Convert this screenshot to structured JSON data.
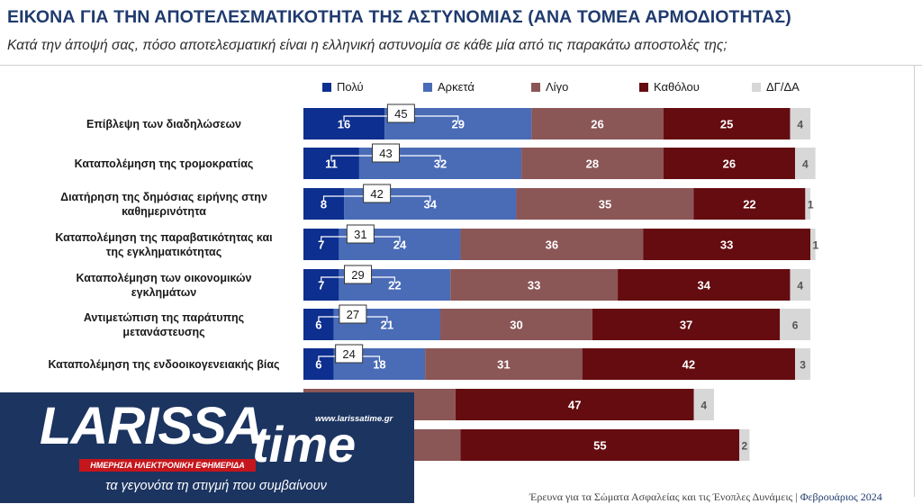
{
  "title": "ΕΙΚΟΝΑ ΓΙΑ ΤΗΝ ΑΠΟΤΕΛΕΣΜΑΤΙΚΟΤΗΤΑ ΤΗΣ ΑΣΤΥΝΟΜΙΑΣ (ΑΝΑ ΤΟΜΕΑ ΑΡΜΟΔΙΟΤΗΤΑΣ)",
  "subtitle": "Κατά την άποψή σας, πόσο αποτελεσματική είναι η ελληνική αστυνομία σε κάθε μία από τις παρακάτω αποστολές της;",
  "footer": {
    "text": "Έρευνα για τα Σώματα Ασφαλείας και τις Ένοπλες Δυνάμεις |",
    "month": "Φεβρουάριος 2024"
  },
  "logo": {
    "brand": "LARISSA",
    "brand2": "time",
    "url": "www.larissatime.gr",
    "ribbon": "ΗΜΕΡΗΣΙΑ ΗΛΕΚΤΡΟΝΙΚΗ ΕΦΗΜΕΡΙΔΑ",
    "slogan": "τα γεγονότα τη στιγμή που συμβαίνουν",
    "colors": {
      "bg": "#1c3460",
      "ribbon": "#c4161c"
    }
  },
  "chart_data": {
    "type": "bar",
    "orientation": "horizontal-stacked-100",
    "legend_position": "top",
    "series": [
      {
        "name": "Πολύ",
        "color": "#0d2f8f",
        "values": [
          16,
          11,
          8,
          7,
          7,
          6,
          6,
          null,
          null
        ]
      },
      {
        "name": "Αρκετά",
        "color": "#4a6cb7",
        "values": [
          29,
          32,
          34,
          24,
          22,
          21,
          18,
          null,
          null
        ]
      },
      {
        "name": "Λίγο",
        "color": "#8b5656",
        "values": [
          26,
          28,
          35,
          36,
          33,
          30,
          31,
          30,
          31
        ]
      },
      {
        "name": "Καθόλου",
        "color": "#650c10",
        "values": [
          25,
          26,
          22,
          33,
          34,
          37,
          42,
          47,
          55
        ]
      },
      {
        "name": "ΔΓ/ΔΑ",
        "color": "#d7d7d7",
        "values": [
          4,
          4,
          1,
          1,
          4,
          6,
          3,
          4,
          2
        ]
      }
    ],
    "totals_positive": [
      45,
      43,
      42,
      31,
      29,
      27,
      24,
      null,
      null
    ],
    "categories": [
      [
        "Επίβλεψη των διαδηλώσεων"
      ],
      [
        "Καταπολέμηση της τρομοκρατίας"
      ],
      [
        "Διατήρηση της δημόσιας ειρήνης στην",
        "καθημερινότητα"
      ],
      [
        "Καταπολέμηση της παραβατικότητας και",
        "της εγκληματικότητας"
      ],
      [
        "Καταπολέμηση των οικονομικών",
        "εγκλημάτων"
      ],
      [
        "Αντιμετώπιση της παράτυπης",
        "μετανάστευσης"
      ],
      [
        "Καταπολέμηση της ενδοοικογενειακής βίας"
      ],
      [],
      []
    ]
  }
}
